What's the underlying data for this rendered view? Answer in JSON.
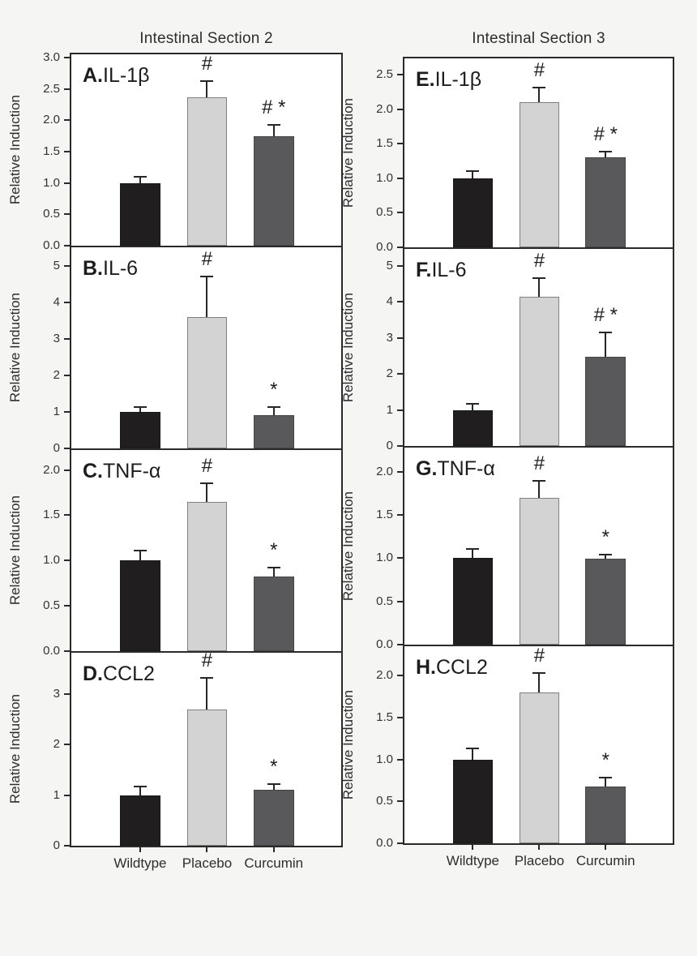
{
  "figure": {
    "background": "#f5f5f4",
    "columns": [
      {
        "title": "Intestinal Section 2"
      },
      {
        "title": "Intestinal Section 3"
      }
    ]
  },
  "categories": [
    "Wildtype",
    "Placebo",
    "Curcumin"
  ],
  "series_colors": {
    "Wildtype": "#211e1f",
    "Placebo": "#d3d3d3",
    "Curcumin": "#59595b"
  },
  "bar_border_colors": {
    "Wildtype": "#1a1a1a",
    "Placebo": "#7f7f7f",
    "Curcumin": "#454547"
  },
  "axis_color": "#2a2a2a",
  "ylabel": "Relative Induction",
  "chart_data": [
    {
      "type": "bar",
      "panel": "A",
      "gene": "IL-1β",
      "column": 0,
      "row": 0,
      "categories": [
        "Wildtype",
        "Placebo",
        "Curcumin"
      ],
      "values": [
        1.0,
        2.36,
        1.74
      ],
      "errors": [
        0.1,
        0.26,
        0.18
      ],
      "annotations": [
        "",
        "#",
        "# *"
      ],
      "ylabel": "Relative Induction",
      "ylim": [
        0,
        3.05
      ],
      "ytick_values": [
        0,
        0.5,
        1,
        1.5,
        2,
        2.5,
        3
      ],
      "ytick_labels": [
        "0.0",
        "0.5",
        "1.0",
        "1.5",
        "2.0",
        "2.5",
        "3.0"
      ]
    },
    {
      "type": "bar",
      "panel": "B",
      "gene": "IL-6",
      "column": 0,
      "row": 1,
      "categories": [
        "Wildtype",
        "Placebo",
        "Curcumin"
      ],
      "values": [
        1.0,
        3.6,
        0.9
      ],
      "errors": [
        0.14,
        1.1,
        0.22
      ],
      "annotations": [
        "",
        "#",
        "*"
      ],
      "ylabel": "Relative Induction",
      "ylim": [
        0,
        5.5
      ],
      "ytick_values": [
        0,
        1,
        2,
        3,
        4,
        5
      ],
      "ytick_labels": [
        "0",
        "1",
        "2",
        "3",
        "4",
        "5"
      ]
    },
    {
      "type": "bar",
      "panel": "C",
      "gene": "TNF-α",
      "column": 0,
      "row": 2,
      "categories": [
        "Wildtype",
        "Placebo",
        "Curcumin"
      ],
      "values": [
        1.0,
        1.65,
        0.82
      ],
      "errors": [
        0.11,
        0.2,
        0.1
      ],
      "annotations": [
        "",
        "#",
        "*"
      ],
      "ylabel": "Relative Induction",
      "ylim": [
        0,
        2.22
      ],
      "ytick_values": [
        0,
        0.5,
        1,
        1.5,
        2
      ],
      "ytick_labels": [
        "0.0",
        "0.5",
        "1.0",
        "1.5",
        "2.0"
      ]
    },
    {
      "type": "bar",
      "panel": "D",
      "gene": "CCL2",
      "column": 0,
      "row": 3,
      "categories": [
        "Wildtype",
        "Placebo",
        "Curcumin"
      ],
      "values": [
        1.0,
        2.7,
        1.1
      ],
      "errors": [
        0.17,
        0.63,
        0.12
      ],
      "annotations": [
        "",
        "#",
        "*"
      ],
      "ylabel": "Relative Induction",
      "ylim": [
        0,
        3.82
      ],
      "ytick_values": [
        0,
        1,
        2,
        3
      ],
      "ytick_labels": [
        "0",
        "1",
        "2",
        "3"
      ]
    },
    {
      "type": "bar",
      "panel": "E",
      "gene": "IL-1β",
      "column": 1,
      "row": 0,
      "categories": [
        "Wildtype",
        "Placebo",
        "Curcumin"
      ],
      "values": [
        1.0,
        2.1,
        1.3
      ],
      "errors": [
        0.1,
        0.22,
        0.09
      ],
      "annotations": [
        "",
        "#",
        "# *"
      ],
      "ylabel": "Relative Induction",
      "ylim": [
        0,
        2.74
      ],
      "ytick_values": [
        0,
        0.5,
        1,
        1.5,
        2,
        2.5
      ],
      "ytick_labels": [
        "0.0",
        "0.5",
        "1.0",
        "1.5",
        "2.0",
        "2.5"
      ]
    },
    {
      "type": "bar",
      "panel": "F",
      "gene": "IL-6",
      "column": 1,
      "row": 1,
      "categories": [
        "Wildtype",
        "Placebo",
        "Curcumin"
      ],
      "values": [
        1.0,
        4.15,
        2.47
      ],
      "errors": [
        0.18,
        0.5,
        0.68
      ],
      "annotations": [
        "",
        "#",
        "# *"
      ],
      "ylabel": "Relative Induction",
      "ylim": [
        0,
        5.47
      ],
      "ytick_values": [
        0,
        1,
        2,
        3,
        4,
        5
      ],
      "ytick_labels": [
        "0",
        "1",
        "2",
        "3",
        "4",
        "5"
      ]
    },
    {
      "type": "bar",
      "panel": "G",
      "gene": "TNF-α",
      "column": 1,
      "row": 2,
      "categories": [
        "Wildtype",
        "Placebo",
        "Curcumin"
      ],
      "values": [
        1.0,
        1.7,
        0.99
      ],
      "errors": [
        0.11,
        0.2,
        0.05
      ],
      "annotations": [
        "",
        "#",
        "*"
      ],
      "ylabel": "Relative Induction",
      "ylim": [
        0,
        2.28
      ],
      "ytick_values": [
        0,
        0.5,
        1,
        1.5,
        2
      ],
      "ytick_labels": [
        "0.0",
        "0.5",
        "1.0",
        "1.5",
        "2.0"
      ]
    },
    {
      "type": "bar",
      "panel": "H",
      "gene": "CCL2",
      "column": 1,
      "row": 3,
      "categories": [
        "Wildtype",
        "Placebo",
        "Curcumin"
      ],
      "values": [
        1.0,
        1.8,
        0.68
      ],
      "errors": [
        0.13,
        0.23,
        0.1
      ],
      "annotations": [
        "",
        "#",
        "*"
      ],
      "ylabel": "Relative Induction",
      "ylim": [
        0,
        2.35
      ],
      "ytick_values": [
        0,
        0.5,
        1,
        1.5,
        2
      ],
      "ytick_labels": [
        "0.0",
        "0.5",
        "1.0",
        "1.5",
        "2.0"
      ]
    }
  ]
}
